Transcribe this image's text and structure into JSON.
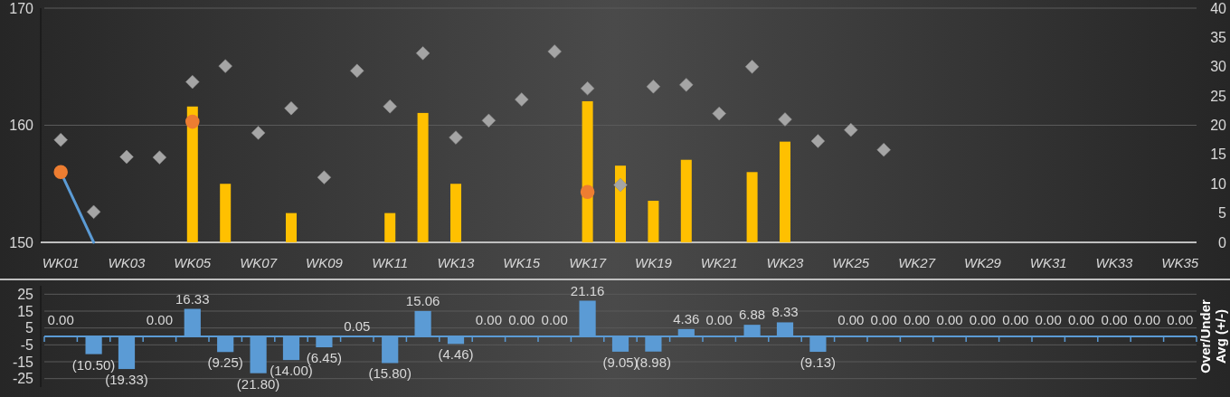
{
  "chart_data": [
    {
      "type": "bar",
      "categories": [
        "WK01",
        null,
        "WK03",
        null,
        "WK05",
        null,
        "WK07",
        null,
        "WK09",
        null,
        "WK11",
        null,
        "WK13",
        null,
        "WK15",
        null,
        "WK17",
        null,
        "WK19",
        null,
        "WK21",
        null,
        "WK23",
        null,
        "WK25",
        null,
        "WK27",
        null,
        "WK29",
        null,
        "WK31",
        null,
        "WK33",
        null,
        "WK35"
      ],
      "series": [
        {
          "axis": "y2",
          "color": "#ffc000",
          "values": [
            null,
            null,
            null,
            null,
            23.2,
            10,
            null,
            5,
            null,
            null,
            5,
            22.1,
            10,
            null,
            null,
            null,
            24.1,
            13.1,
            7.1,
            14.1,
            null,
            12,
            17.2,
            null,
            null,
            null,
            null,
            null,
            null,
            null,
            null,
            null,
            null,
            null,
            null
          ]
        },
        {
          "type": "scatter",
          "axis": "y2",
          "marker": "diamond",
          "color": "#a5a5a5",
          "values": [
            17.5,
            5.2,
            14.6,
            14.5,
            27.4,
            30.1,
            18.7,
            22.9,
            11.1,
            29.3,
            23.2,
            32.3,
            17.9,
            20.8,
            24.4,
            32.6,
            26.3,
            9.8,
            26.6,
            26.9,
            22,
            30,
            21,
            17.3,
            19.2,
            15.8,
            null,
            null,
            null,
            null,
            null,
            null,
            null,
            null,
            null
          ]
        },
        {
          "type": "line",
          "marker": "none",
          "color": "#5b9bd5",
          "values": [
            156,
            150,
            null,
            null,
            null,
            null,
            null,
            null,
            null,
            null,
            null,
            null,
            null,
            null,
            null,
            null,
            null,
            null,
            null,
            null,
            null,
            null,
            null,
            null,
            null,
            null,
            null,
            null,
            null,
            null,
            null,
            null,
            null,
            null,
            null
          ]
        },
        {
          "type": "scatter",
          "marker": "circle",
          "color": "#ed7d31",
          "values": [
            156,
            null,
            null,
            null,
            160.3,
            null,
            null,
            null,
            null,
            null,
            null,
            null,
            null,
            null,
            null,
            null,
            154.3,
            null,
            null,
            null,
            null,
            null,
            null,
            null,
            null,
            null,
            null,
            null,
            null,
            null,
            null,
            null,
            null,
            null,
            null
          ]
        }
      ],
      "ylim": [
        150,
        170
      ],
      "yticks": [
        150,
        160,
        170
      ],
      "y2lim": [
        0,
        40
      ],
      "y2ticks": [
        0,
        5,
        10,
        15,
        20,
        25,
        30,
        35,
        40
      ],
      "grid": "y"
    },
    {
      "type": "bar",
      "ylabel": "Over/Under Avg (+/-)",
      "categories": [
        null,
        null,
        null,
        null,
        null,
        null,
        null,
        null,
        null,
        null,
        null,
        null,
        null,
        null,
        null,
        null,
        null,
        null,
        null,
        null,
        null,
        null,
        null,
        null,
        null,
        null,
        null,
        null,
        null,
        null,
        null,
        null,
        null,
        null,
        null
      ],
      "color": "#5b9bd5",
      "values": [
        0,
        -10.5,
        -19.33,
        0,
        16.33,
        -9.25,
        -21.8,
        -14,
        -6.45,
        0.05,
        -15.8,
        15.06,
        -4.46,
        0,
        0,
        0,
        21.16,
        -9.05,
        -8.98,
        4.36,
        0,
        6.88,
        8.33,
        -9.13,
        0,
        0,
        0,
        0,
        0,
        0,
        0,
        0,
        0,
        0,
        0
      ],
      "value_labels": [
        "0.00",
        "(10.50)",
        "(19.33)",
        "0.00",
        "16.33",
        "(9.25)",
        "(21.80)",
        "(14.00)",
        "(6.45)",
        "0.05",
        "(15.80)",
        "15.06",
        "(4.46)",
        "0.00",
        "0.00",
        "0.00",
        "21.16",
        "(9.05)",
        "(8.98)",
        "4.36",
        "0.00",
        "6.88",
        "8.33",
        "(9.13)",
        "0.00",
        "0.00",
        "0.00",
        "0.00",
        "0.00",
        "0.00",
        "0.00",
        "0.00",
        "0.00",
        "0.00",
        "0.00"
      ],
      "ylim": [
        -30,
        30
      ],
      "yticks": [
        -25,
        -15,
        -5,
        5,
        15,
        25
      ],
      "grid": "y",
      "ref_lines": [
        {
          "axis": "y",
          "value": 0,
          "color": "#5b9bd5"
        }
      ]
    }
  ]
}
